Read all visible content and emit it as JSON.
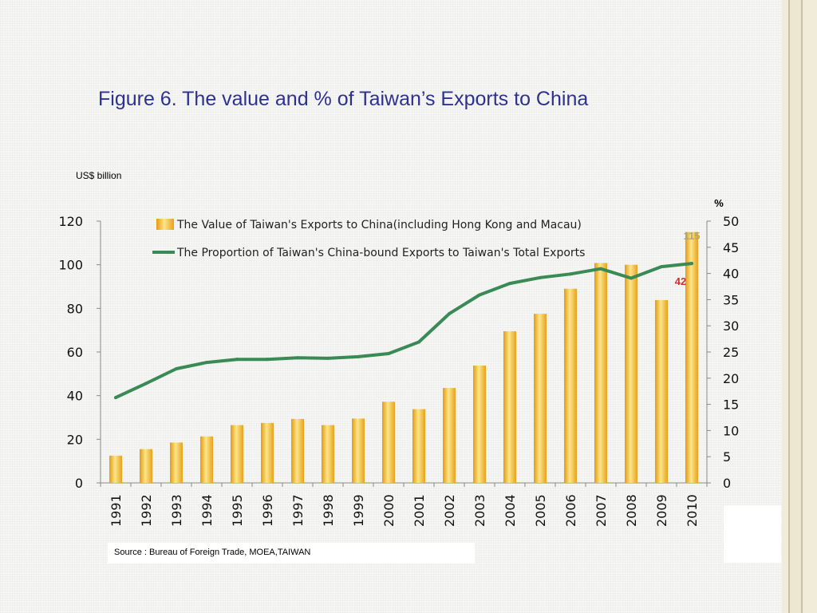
{
  "slide": {
    "title": "Figure 6. The value and % of  Taiwan’s Exports to China",
    "source": "Source : Bureau of  Foreign Trade, MOEA,TAIWAN"
  },
  "chart_data": {
    "type": "bar",
    "unit_left": "US$ billion",
    "unit_right": "%",
    "categories": [
      "1991",
      "1992",
      "1993",
      "1994",
      "1995",
      "1996",
      "1997",
      "1998",
      "1999",
      "2000",
      "2001",
      "2002",
      "2003",
      "2004",
      "2005",
      "2006",
      "2007",
      "2008",
      "2009",
      "2010"
    ],
    "series": [
      {
        "name": "The Value of Taiwan's Exports to China(including Hong Kong and Macau)",
        "type": "bar",
        "axis": "left",
        "color": "#f2b632",
        "values": [
          12.5,
          15.5,
          18.5,
          21.3,
          26.5,
          27.5,
          29.3,
          26.5,
          29.5,
          37.2,
          33.8,
          43.5,
          53.8,
          69.5,
          77.5,
          89,
          100.8,
          100,
          83.8,
          115
        ]
      },
      {
        "name": "The Proportion of Taiwan's China-bound Exports to Taiwan's Total Exports",
        "type": "line",
        "axis": "right",
        "color": "#3a8a55",
        "values": [
          16.3,
          19,
          21.8,
          23,
          23.6,
          23.6,
          23.9,
          23.8,
          24.1,
          24.7,
          26.9,
          32.3,
          35.9,
          38.1,
          39.2,
          39.9,
          40.9,
          39.1,
          41.3,
          41.9
        ]
      }
    ],
    "y_left": {
      "min": 0,
      "max": 120,
      "ticks": [
        "0",
        "20",
        "40",
        "60",
        "80",
        "100",
        "120"
      ]
    },
    "y_right": {
      "min": 0,
      "max": 50,
      "ticks": [
        "0",
        "5",
        "10",
        "15",
        "20",
        "25",
        "30",
        "35",
        "40",
        "45",
        "50"
      ]
    },
    "annotations": {
      "bar_2010_label": "115",
      "line_2010_label": "42"
    },
    "legend_position": "top",
    "grid": false
  }
}
